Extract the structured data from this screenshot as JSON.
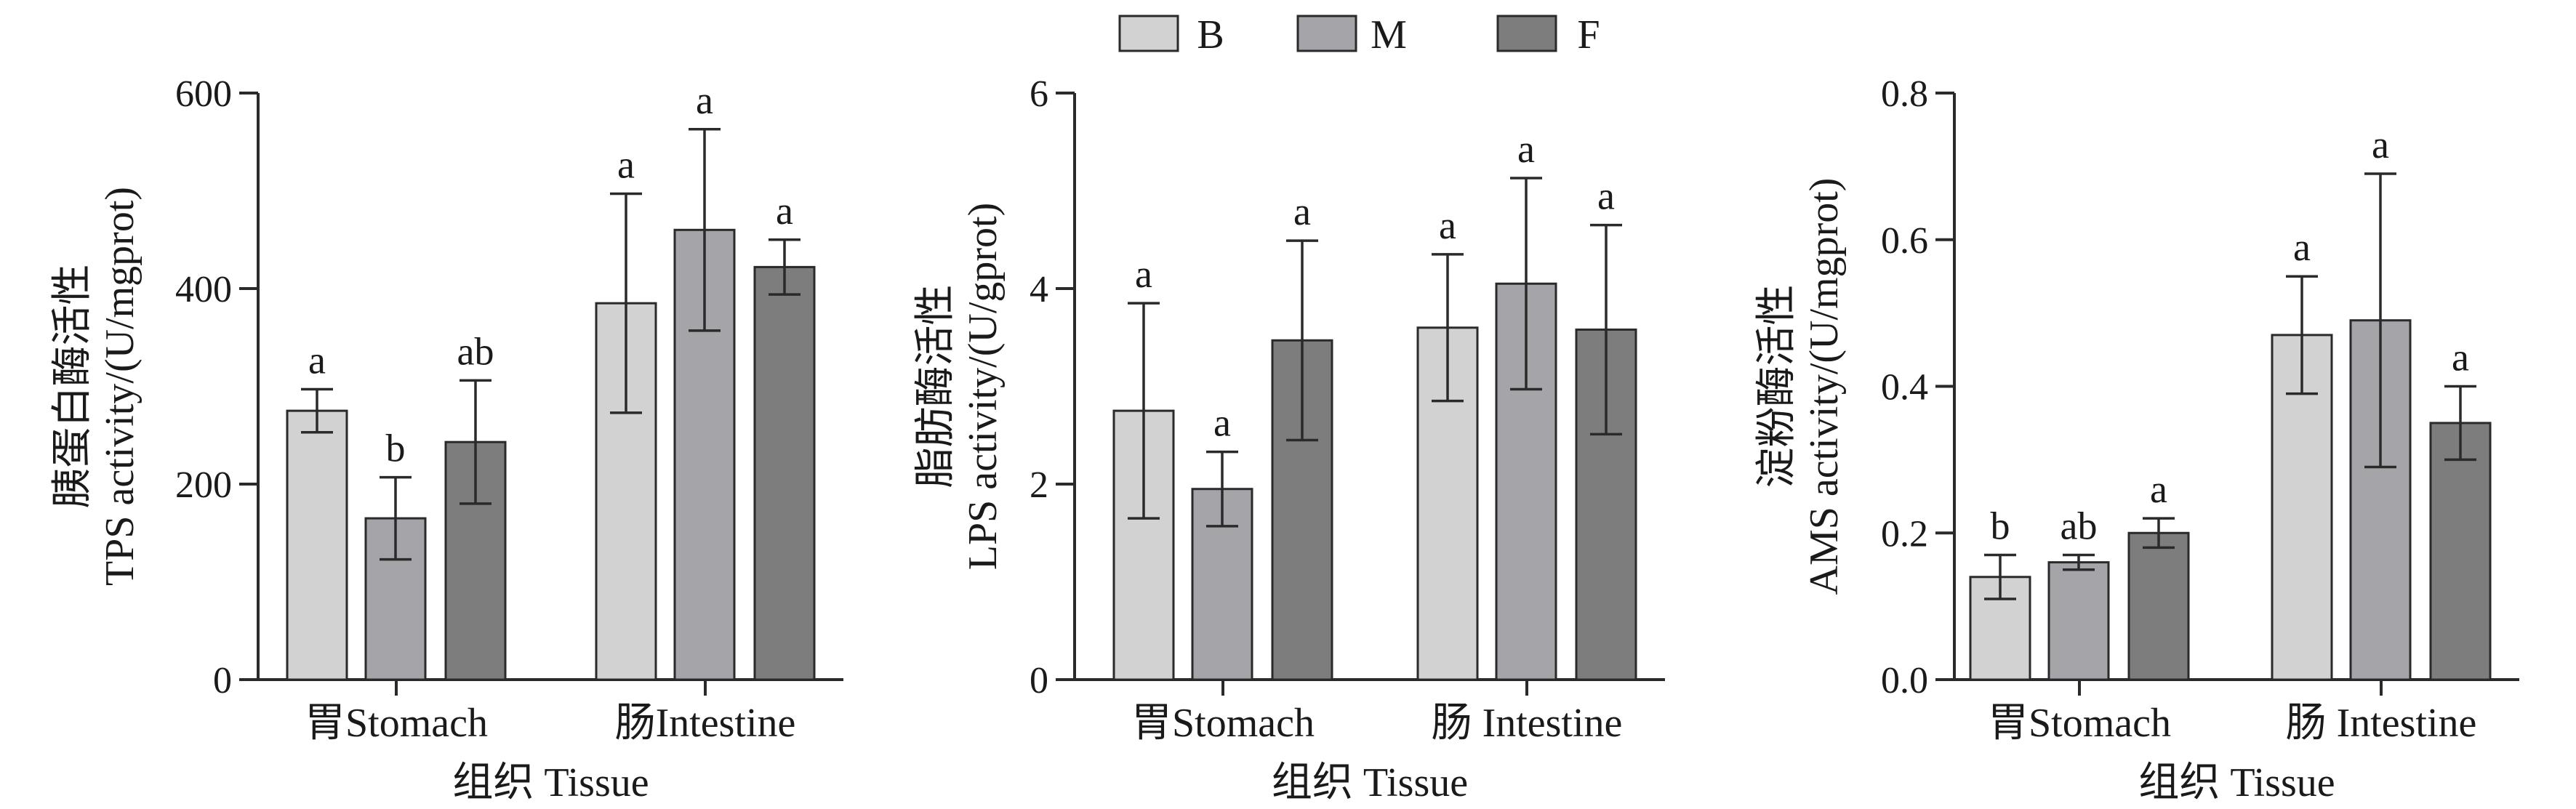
{
  "legend": {
    "items": [
      {
        "label": "B",
        "color": "#d2d2d2"
      },
      {
        "label": "M",
        "color": "#a4a4a9"
      },
      {
        "label": "F",
        "color": "#7d7d7d"
      }
    ]
  },
  "chart_data": [
    {
      "type": "bar",
      "title": "",
      "ylabel_cn": "胰蛋白酶活性",
      "ylabel": "TPS activity/(U/mgprot)",
      "xlabel": "组织 Tissue",
      "categories": [
        "胃Stomach",
        "肠Intestine"
      ],
      "ylim": [
        0,
        600
      ],
      "yticks": [
        0,
        200,
        400,
        600
      ],
      "ytick_labels": [
        "0",
        "200",
        "400",
        "600"
      ],
      "series": [
        {
          "name": "B",
          "values": [
            275,
            385
          ],
          "errors": [
            22,
            112
          ],
          "sig": [
            "a",
            "a"
          ]
        },
        {
          "name": "M",
          "values": [
            165,
            460
          ],
          "errors": [
            42,
            103
          ],
          "sig": [
            "b",
            "a"
          ]
        },
        {
          "name": "F",
          "values": [
            243,
            422
          ],
          "errors": [
            63,
            28
          ],
          "sig": [
            "ab",
            "a"
          ]
        }
      ]
    },
    {
      "type": "bar",
      "title": "",
      "ylabel_cn": "脂肪酶活性",
      "ylabel": "LPS activity/(U/gprot)",
      "xlabel": "组织 Tissue",
      "categories": [
        "胃Stomach",
        "肠 Intestine"
      ],
      "ylim": [
        0,
        6
      ],
      "yticks": [
        0,
        2,
        4,
        6
      ],
      "ytick_labels": [
        "0",
        "2",
        "4",
        "6"
      ],
      "series": [
        {
          "name": "B",
          "values": [
            2.75,
            3.6
          ],
          "errors": [
            1.1,
            0.75
          ],
          "sig": [
            "a",
            "a"
          ]
        },
        {
          "name": "M",
          "values": [
            1.95,
            4.05
          ],
          "errors": [
            0.38,
            1.08
          ],
          "sig": [
            "a",
            "a"
          ]
        },
        {
          "name": "F",
          "values": [
            3.47,
            3.58
          ],
          "errors": [
            1.02,
            1.07
          ],
          "sig": [
            "a",
            "a"
          ]
        }
      ]
    },
    {
      "type": "bar",
      "title": "",
      "ylabel_cn": "淀粉酶活性",
      "ylabel": "AMS activity/(U/mgprot)",
      "xlabel": "组织 Tissue",
      "categories": [
        "胃Stomach",
        "肠 Intestine"
      ],
      "ylim": [
        0,
        0.8
      ],
      "yticks": [
        0,
        0.2,
        0.4,
        0.6,
        0.8
      ],
      "ytick_labels": [
        "0.0",
        "0.2",
        "0.4",
        "0.6",
        "0.8"
      ],
      "series": [
        {
          "name": "B",
          "values": [
            0.14,
            0.47
          ],
          "errors": [
            0.03,
            0.08
          ],
          "sig": [
            "b",
            "a"
          ]
        },
        {
          "name": "M",
          "values": [
            0.16,
            0.49
          ],
          "errors": [
            0.01,
            0.2
          ],
          "sig": [
            "ab",
            "a"
          ]
        },
        {
          "name": "F",
          "values": [
            0.2,
            0.35
          ],
          "errors": [
            0.02,
            0.05
          ],
          "sig": [
            "a",
            "a"
          ]
        }
      ]
    }
  ]
}
